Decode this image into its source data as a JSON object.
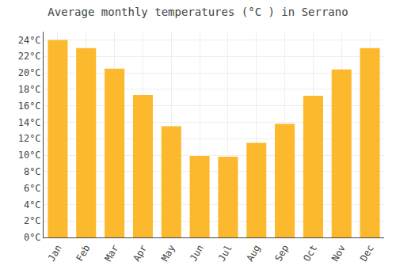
{
  "chart_data": {
    "type": "bar",
    "title": "Average monthly temperatures (°C ) in Serrano",
    "categories": [
      "Jan",
      "Feb",
      "Mar",
      "Apr",
      "May",
      "Jun",
      "Jul",
      "Aug",
      "Sep",
      "Oct",
      "Nov",
      "Dec"
    ],
    "values": [
      24.0,
      23.0,
      20.5,
      17.3,
      13.5,
      9.9,
      9.8,
      11.5,
      13.8,
      17.2,
      20.4,
      23.0
    ],
    "color": "#FDB92E",
    "ylim": [
      0,
      25
    ],
    "yticks": [
      {
        "value": 0,
        "label": "0°C"
      },
      {
        "value": 2,
        "label": "2°C"
      },
      {
        "value": 4,
        "label": "4°C"
      },
      {
        "value": 6,
        "label": "6°C"
      },
      {
        "value": 8,
        "label": "8°C"
      },
      {
        "value": 10,
        "label": "10°C"
      },
      {
        "value": 12,
        "label": "12°C"
      },
      {
        "value": 14,
        "label": "14°C"
      },
      {
        "value": 16,
        "label": "16°C"
      },
      {
        "value": 18,
        "label": "18°C"
      },
      {
        "value": 20,
        "label": "20°C"
      },
      {
        "value": 22,
        "label": "22°C"
      },
      {
        "value": 24,
        "label": "24°C"
      }
    ],
    "grid": true
  }
}
